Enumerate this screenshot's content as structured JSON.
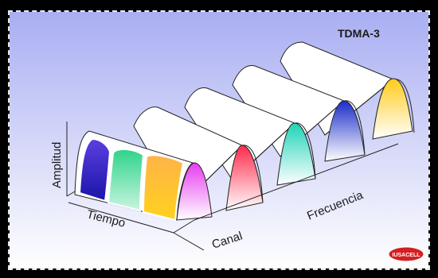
{
  "title": "TDMA-3",
  "axes": {
    "amplitude": "Amplitud",
    "time": "Tiempo",
    "channel": "Canal",
    "frequency": "Frecuencia"
  },
  "logo": {
    "text": "IUSACELL",
    "accent_color": "#d42020"
  },
  "colors": {
    "background_top": "#a9aef2",
    "background_bottom": "#ffffff",
    "slot_1": "#5a3fe0",
    "slot_2": "#2fd38a",
    "slot_3": "#ffd21e",
    "slot_4": "#e63cf0",
    "channel_2": "#ff2a4a",
    "channel_3": "#1fd3b8",
    "channel_4": "#1a2cc8",
    "channel_5": "#ffcc1a"
  }
}
